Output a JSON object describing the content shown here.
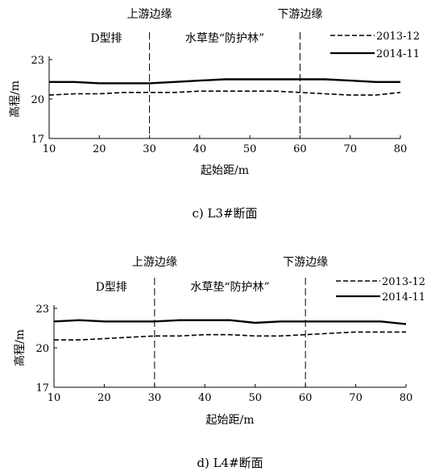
{
  "chart_data": [
    {
      "type": "line",
      "caption": "c) L3#断面",
      "xlabel": "起始距/m",
      "ylabel": "高程/m",
      "xlim": [
        10,
        80
      ],
      "ylim": [
        17,
        23
      ],
      "xticks": [
        10,
        20,
        30,
        40,
        50,
        60,
        70,
        80
      ],
      "yticks": [
        17,
        20,
        23
      ],
      "annotations": {
        "upstream": "上游边缘",
        "downstream": "下游边缘",
        "left_zone": "D型排",
        "right_zone": "水草垫“防护林”"
      },
      "markers_x": [
        30,
        60
      ],
      "legend_position": "top-right",
      "series": [
        {
          "name": "2013-12",
          "style": "dashed",
          "x": [
            10,
            15,
            20,
            25,
            30,
            35,
            40,
            45,
            50,
            55,
            60,
            65,
            70,
            75,
            80
          ],
          "y": [
            20.3,
            20.4,
            20.4,
            20.5,
            20.5,
            20.5,
            20.6,
            20.6,
            20.6,
            20.6,
            20.5,
            20.4,
            20.3,
            20.3,
            20.5
          ]
        },
        {
          "name": "2014-11",
          "style": "solid",
          "x": [
            10,
            15,
            20,
            25,
            30,
            35,
            40,
            45,
            50,
            55,
            60,
            65,
            70,
            75,
            80
          ],
          "y": [
            21.3,
            21.3,
            21.2,
            21.2,
            21.2,
            21.3,
            21.4,
            21.5,
            21.5,
            21.5,
            21.5,
            21.5,
            21.4,
            21.3,
            21.3
          ]
        }
      ]
    },
    {
      "type": "line",
      "caption": "d) L4#断面",
      "xlabel": "起始距/m",
      "ylabel": "高程/m",
      "xlim": [
        10,
        80
      ],
      "ylim": [
        17,
        23
      ],
      "xticks": [
        10,
        20,
        30,
        40,
        50,
        60,
        70,
        80
      ],
      "yticks": [
        17,
        20,
        23
      ],
      "annotations": {
        "upstream": "上游边缘",
        "downstream": "下游边缘",
        "left_zone": "D型排",
        "right_zone": "水草垫“防护林”"
      },
      "markers_x": [
        30,
        60
      ],
      "legend_position": "top-right",
      "series": [
        {
          "name": "2013-12",
          "style": "dashed",
          "x": [
            10,
            15,
            20,
            25,
            30,
            35,
            40,
            45,
            50,
            55,
            60,
            65,
            70,
            75,
            80
          ],
          "y": [
            20.6,
            20.6,
            20.7,
            20.8,
            20.9,
            20.9,
            21.0,
            21.0,
            20.9,
            20.9,
            21.0,
            21.1,
            21.2,
            21.2,
            21.2
          ]
        },
        {
          "name": "2014-11",
          "style": "solid",
          "x": [
            10,
            15,
            20,
            25,
            30,
            35,
            40,
            45,
            50,
            55,
            60,
            65,
            70,
            75,
            80
          ],
          "y": [
            22.0,
            22.1,
            22.0,
            22.0,
            22.0,
            22.1,
            22.1,
            22.1,
            21.9,
            22.0,
            22.0,
            22.0,
            22.0,
            22.0,
            21.8
          ]
        }
      ]
    }
  ]
}
